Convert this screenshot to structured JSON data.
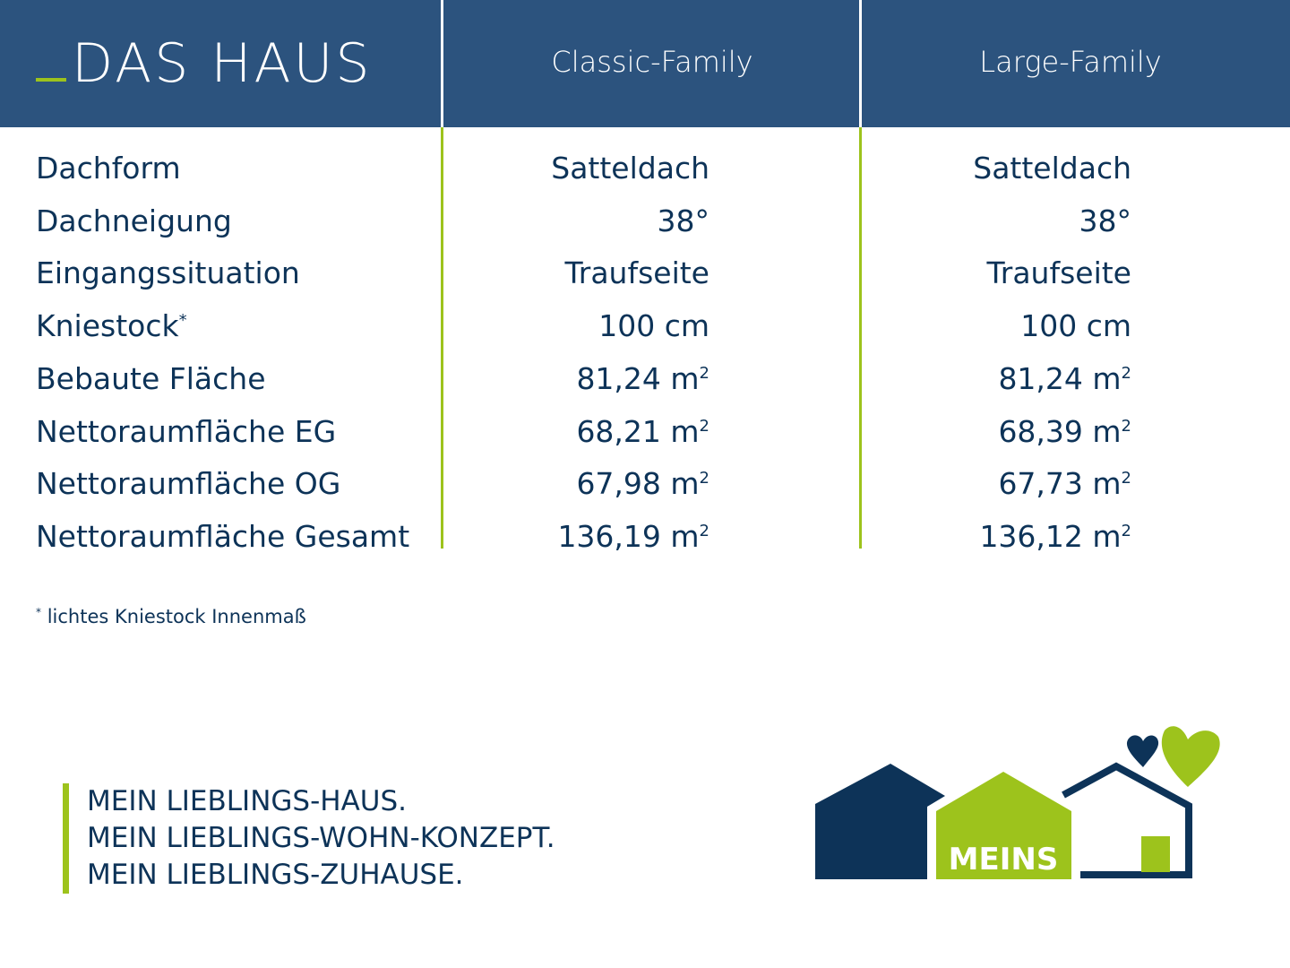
{
  "header": {
    "title": "DAS HAUS",
    "columns": [
      "Classic-Family",
      "Large-Family"
    ]
  },
  "rows": [
    {
      "label": "Dachform",
      "sup": "",
      "classic": "Satteldach",
      "classic_sup": "",
      "large": "Satteldach",
      "large_sup": ""
    },
    {
      "label": "Dachneigung",
      "sup": "",
      "classic": "38°",
      "classic_sup": "",
      "large": "38°",
      "large_sup": ""
    },
    {
      "label": "Eingangssituation",
      "sup": "",
      "classic": "Traufseite",
      "classic_sup": "",
      "large": "Traufseite",
      "large_sup": ""
    },
    {
      "label": "Kniestock",
      "sup": "*",
      "classic": "100 cm",
      "classic_sup": "",
      "large": "100 cm",
      "large_sup": ""
    },
    {
      "label": "Bebaute Fläche",
      "sup": "",
      "classic": "81,24 m",
      "classic_sup": "2",
      "large": "81,24 m",
      "large_sup": "2"
    },
    {
      "label": "Nettoraumfläche EG",
      "sup": "",
      "classic": "68,21 m",
      "classic_sup": "2",
      "large": "68,39 m",
      "large_sup": "2"
    },
    {
      "label": "Nettoraumfläche OG",
      "sup": "",
      "classic": "67,98 m",
      "classic_sup": "2",
      "large": "67,73 m",
      "large_sup": "2"
    },
    {
      "label": "Nettoraumfläche Gesamt",
      "sup": "",
      "classic": "136,19 m",
      "classic_sup": "2",
      "large": "136,12 m",
      "large_sup": "2"
    }
  ],
  "footnote": {
    "mark": "*",
    "text": "lichtes Kniestock Innenmaß"
  },
  "slogan": [
    "MEIN LIEBLINGS-HAUS.",
    "MEIN LIEBLINGS-WOHN-KONZEPT.",
    "MEIN LIEBLINGS-ZUHAUSE."
  ],
  "logo": {
    "text": "MEINS"
  },
  "colors": {
    "header": "#2c537e",
    "navy": "#0d3358",
    "green": "#9dc31c"
  }
}
